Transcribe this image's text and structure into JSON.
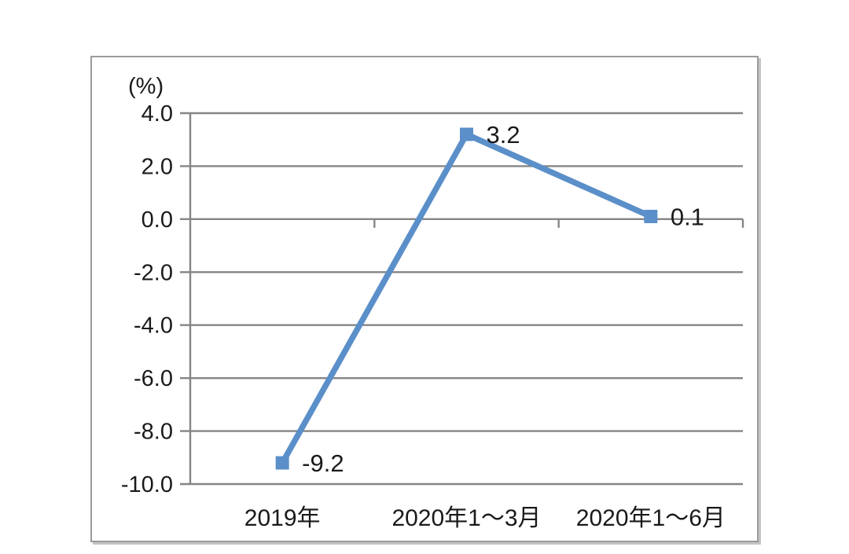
{
  "chart_data": {
    "type": "line",
    "categories": [
      "2019年",
      "2020年1～3月",
      "2020年1～6月"
    ],
    "values": [
      -9.2,
      3.2,
      0.1
    ],
    "data_labels": [
      "-9.2",
      "3.2",
      "0.1"
    ],
    "title": "",
    "xlabel": "",
    "ylabel": "(%)",
    "ylim": [
      -10.0,
      4.0
    ],
    "yticks": [
      4.0,
      2.0,
      0.0,
      -2.0,
      -4.0,
      -6.0,
      -8.0,
      -10.0
    ],
    "ytick_labels": [
      "4.0",
      "2.0",
      "0.0",
      "-2.0",
      "-4.0",
      "-6.0",
      "-8.0",
      "-10.0"
    ],
    "grid": true,
    "legend": "none",
    "marker": "square"
  },
  "colors": {
    "line": "#5b8fc9",
    "grid": "#858585",
    "axis": "#858585",
    "text": "#1a1a1a",
    "background": "#ffffff"
  }
}
